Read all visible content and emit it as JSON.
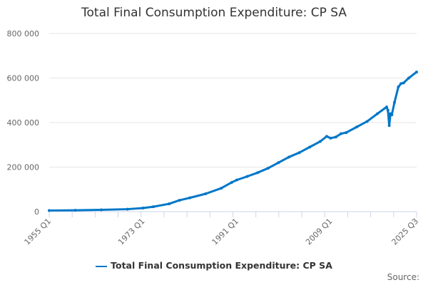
{
  "chart_data": {
    "type": "line",
    "title": "Total Final Consumption Expenditure: CP SA",
    "xlabel": "",
    "ylabel": "",
    "ylim": [
      0,
      800000
    ],
    "yticks": [
      "0",
      "200 000",
      "400 000",
      "600 000",
      "800 000"
    ],
    "ytick_values": [
      0,
      200000,
      400000,
      600000,
      800000
    ],
    "xticks": [
      "1955 Q1",
      "1973 Q1",
      "1991 Q1",
      "2009 Q1",
      "2025 Q3"
    ],
    "x_range": [
      "1955 Q1",
      "2025 Q3"
    ],
    "grid": "horizontal",
    "legend_position": "bottom",
    "color": "#0077c8",
    "series": [
      {
        "name": "Total Final Consumption Expenditure: CP SA",
        "x": [
          "1955 Q1",
          "1960 Q1",
          "1965 Q1",
          "1970 Q1",
          "1973 Q1",
          "1975 Q1",
          "1978 Q1",
          "1980 Q1",
          "1982 Q1",
          "1985 Q1",
          "1988 Q1",
          "1990 Q1",
          "1991 Q1",
          "1993 Q1",
          "1995 Q1",
          "1997 Q1",
          "1999 Q1",
          "2001 Q1",
          "2003 Q1",
          "2005 Q1",
          "2007 Q1",
          "2008 Q2",
          "2009 Q1",
          "2010 Q1",
          "2011 Q1",
          "2012 Q1",
          "2014 Q1",
          "2016 Q1",
          "2018 Q1",
          "2019 Q4",
          "2020 Q1",
          "2020 Q2",
          "2020 Q3",
          "2020 Q4",
          "2021 Q2",
          "2022 Q1",
          "2022 Q3",
          "2023 Q1",
          "2024 Q1",
          "2025 Q3"
        ],
        "values": [
          5000,
          6000,
          8000,
          11000,
          16000,
          22000,
          35000,
          51000,
          62000,
          80000,
          105000,
          131000,
          142000,
          158000,
          175000,
          195000,
          220000,
          245000,
          265000,
          290000,
          315000,
          338000,
          330000,
          335000,
          350000,
          355000,
          380000,
          405000,
          440000,
          470000,
          455000,
          387000,
          440000,
          435000,
          490000,
          560000,
          575000,
          578000,
          600000,
          627000
        ]
      }
    ]
  },
  "source_label": "Source:"
}
